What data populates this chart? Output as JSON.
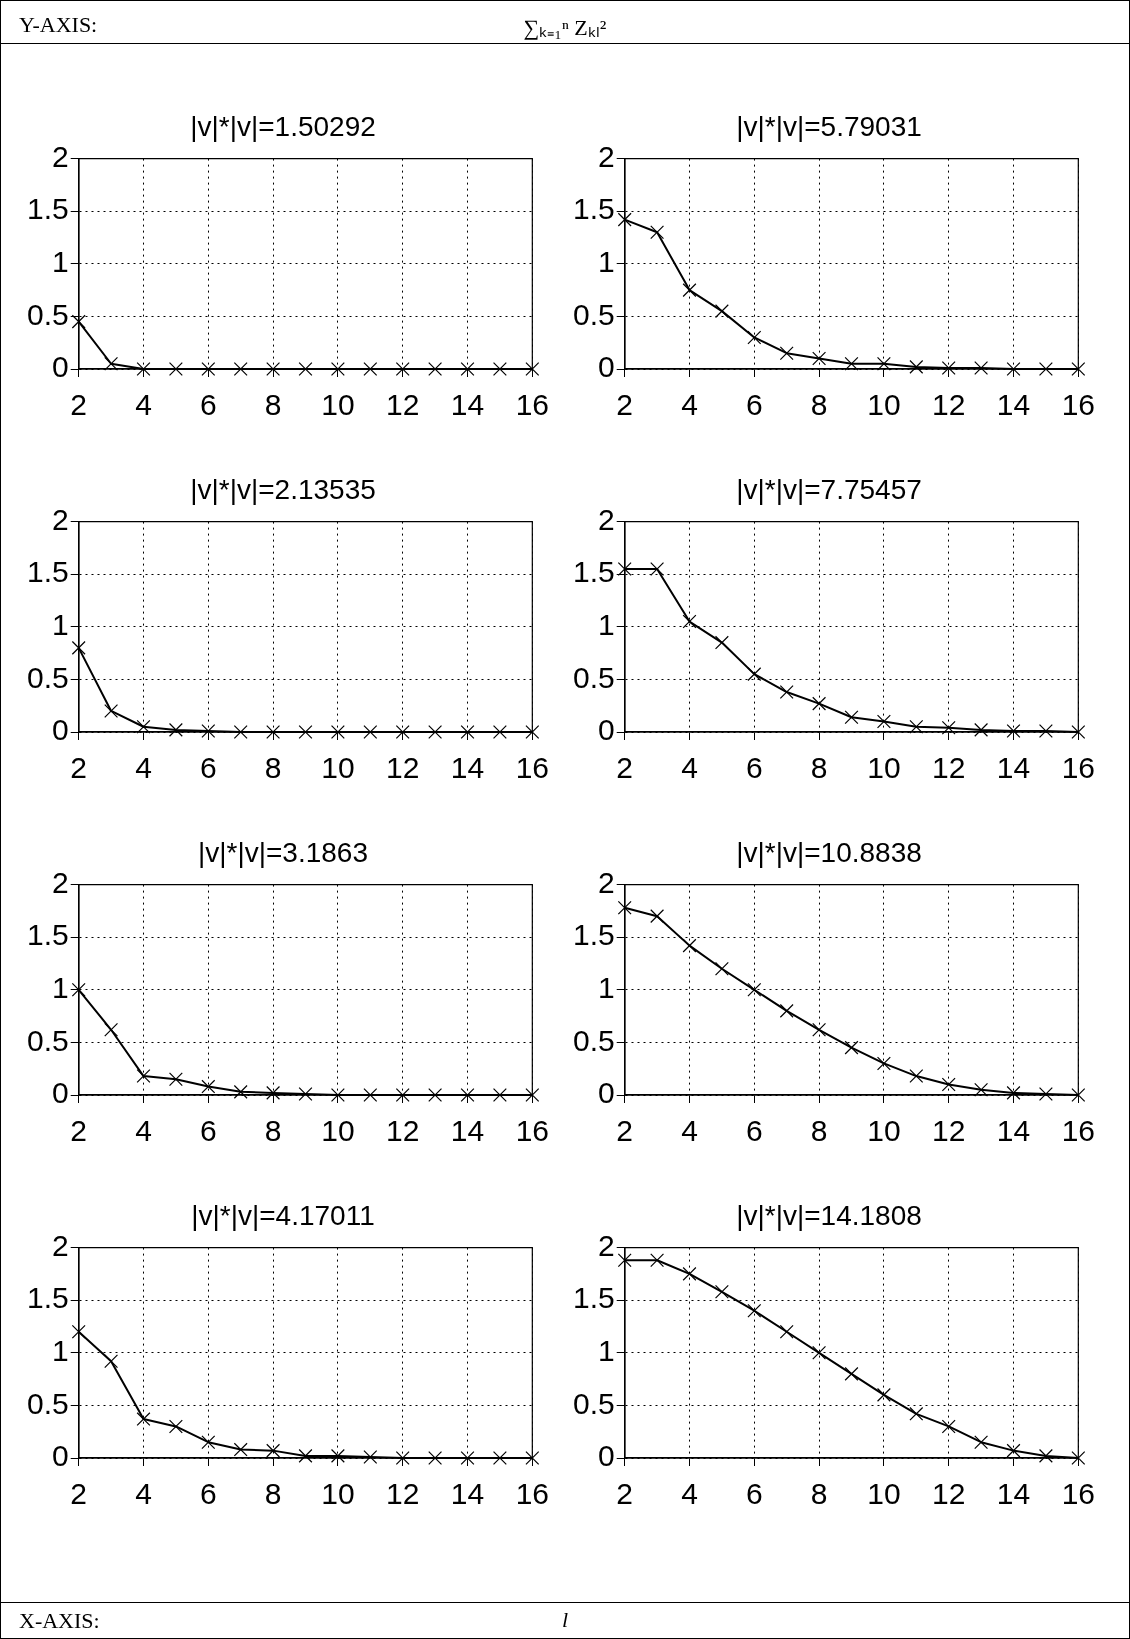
{
  "chart_data": [
    {
      "type": "line",
      "title": "|v|*|v|=1.50292",
      "annotations": [
        "Y-AXIS:",
        "∑ₖ₌₁ⁿ Zₖₗ²",
        "X-AXIS:",
        "l"
      ],
      "x": [
        2,
        3,
        4,
        5,
        6,
        7,
        8,
        9,
        10,
        11,
        12,
        13,
        14,
        15,
        16
      ],
      "series": [
        {
          "color": "#000000",
          "values": [
            0.45,
            0.05,
            0,
            0,
            0,
            0,
            0,
            0,
            0,
            0,
            0,
            0,
            0,
            0,
            0
          ]
        }
      ],
      "xlim": [
        2,
        16
      ],
      "xticks": [
        2,
        4,
        6,
        8,
        10,
        12,
        14,
        16
      ],
      "ylim": [
        0,
        2
      ],
      "yticks": [
        0,
        0.5,
        1,
        1.5,
        2
      ],
      "grid": true,
      "marker": "cross",
      "legend": false
    },
    {
      "type": "line",
      "title": "|v|*|v|=5.79031",
      "x": [
        2,
        3,
        4,
        5,
        6,
        7,
        8,
        9,
        10,
        11,
        12,
        13,
        14,
        15,
        16
      ],
      "series": [
        {
          "color": "#000000",
          "values": [
            1.42,
            1.3,
            0.75,
            0.55,
            0.3,
            0.15,
            0.1,
            0.05,
            0.05,
            0.02,
            0.01,
            0.01,
            0,
            0,
            0
          ]
        }
      ],
      "xlim": [
        2,
        16
      ],
      "xticks": [
        2,
        4,
        6,
        8,
        10,
        12,
        14,
        16
      ],
      "ylim": [
        0,
        2
      ],
      "yticks": [
        0,
        0.5,
        1,
        1.5,
        2
      ],
      "grid": true,
      "marker": "cross",
      "legend": false
    },
    {
      "type": "line",
      "title": "|v|*|v|=2.13535",
      "x": [
        2,
        3,
        4,
        5,
        6,
        7,
        8,
        9,
        10,
        11,
        12,
        13,
        14,
        15,
        16
      ],
      "series": [
        {
          "color": "#000000",
          "values": [
            0.8,
            0.2,
            0.05,
            0.02,
            0.01,
            0,
            0,
            0,
            0,
            0,
            0,
            0,
            0,
            0,
            0
          ]
        }
      ],
      "xlim": [
        2,
        16
      ],
      "xticks": [
        2,
        4,
        6,
        8,
        10,
        12,
        14,
        16
      ],
      "ylim": [
        0,
        2
      ],
      "yticks": [
        0,
        0.5,
        1,
        1.5,
        2
      ],
      "grid": true,
      "marker": "cross",
      "legend": false
    },
    {
      "type": "line",
      "title": "|v|*|v|=7.75457",
      "x": [
        2,
        3,
        4,
        5,
        6,
        7,
        8,
        9,
        10,
        11,
        12,
        13,
        14,
        15,
        16
      ],
      "series": [
        {
          "color": "#000000",
          "values": [
            1.55,
            1.55,
            1.05,
            0.85,
            0.55,
            0.38,
            0.27,
            0.14,
            0.1,
            0.05,
            0.04,
            0.02,
            0.01,
            0.01,
            0
          ]
        }
      ],
      "xlim": [
        2,
        16
      ],
      "xticks": [
        2,
        4,
        6,
        8,
        10,
        12,
        14,
        16
      ],
      "ylim": [
        0,
        2
      ],
      "yticks": [
        0,
        0.5,
        1,
        1.5,
        2
      ],
      "grid": true,
      "marker": "cross",
      "legend": false
    },
    {
      "type": "line",
      "title": "|v|*|v|=3.1863",
      "x": [
        2,
        3,
        4,
        5,
        6,
        7,
        8,
        9,
        10,
        11,
        12,
        13,
        14,
        15,
        16
      ],
      "series": [
        {
          "color": "#000000",
          "values": [
            1.0,
            0.62,
            0.18,
            0.15,
            0.08,
            0.03,
            0.02,
            0.01,
            0,
            0,
            0,
            0,
            0,
            0,
            0
          ]
        }
      ],
      "xlim": [
        2,
        16
      ],
      "xticks": [
        2,
        4,
        6,
        8,
        10,
        12,
        14,
        16
      ],
      "ylim": [
        0,
        2
      ],
      "yticks": [
        0,
        0.5,
        1,
        1.5,
        2
      ],
      "grid": true,
      "marker": "cross",
      "legend": false
    },
    {
      "type": "line",
      "title": "|v|*|v|=10.8838",
      "x": [
        2,
        3,
        4,
        5,
        6,
        7,
        8,
        9,
        10,
        11,
        12,
        13,
        14,
        15,
        16
      ],
      "series": [
        {
          "color": "#000000",
          "values": [
            1.78,
            1.7,
            1.42,
            1.2,
            1.0,
            0.8,
            0.62,
            0.45,
            0.3,
            0.18,
            0.1,
            0.05,
            0.02,
            0.01,
            0
          ]
        }
      ],
      "xlim": [
        2,
        16
      ],
      "xticks": [
        2,
        4,
        6,
        8,
        10,
        12,
        14,
        16
      ],
      "ylim": [
        0,
        2
      ],
      "yticks": [
        0,
        0.5,
        1,
        1.5,
        2
      ],
      "grid": true,
      "marker": "cross",
      "legend": false
    },
    {
      "type": "line",
      "title": "|v|*|v|=4.17011",
      "x": [
        2,
        3,
        4,
        5,
        6,
        7,
        8,
        9,
        10,
        11,
        12,
        13,
        14,
        15,
        16
      ],
      "series": [
        {
          "color": "#000000",
          "values": [
            1.2,
            0.92,
            0.37,
            0.3,
            0.15,
            0.08,
            0.07,
            0.02,
            0.02,
            0.01,
            0,
            0,
            0,
            0,
            0
          ]
        }
      ],
      "xlim": [
        2,
        16
      ],
      "xticks": [
        2,
        4,
        6,
        8,
        10,
        12,
        14,
        16
      ],
      "ylim": [
        0,
        2
      ],
      "yticks": [
        0,
        0.5,
        1,
        1.5,
        2
      ],
      "grid": true,
      "marker": "cross",
      "legend": false
    },
    {
      "type": "line",
      "title": "|v|*|v|=14.1808",
      "x": [
        2,
        3,
        4,
        5,
        6,
        7,
        8,
        9,
        10,
        11,
        12,
        13,
        14,
        15,
        16
      ],
      "series": [
        {
          "color": "#000000",
          "values": [
            1.88,
            1.88,
            1.75,
            1.58,
            1.4,
            1.2,
            1.0,
            0.8,
            0.6,
            0.42,
            0.3,
            0.15,
            0.07,
            0.02,
            0
          ]
        }
      ],
      "xlim": [
        2,
        16
      ],
      "xticks": [
        2,
        4,
        6,
        8,
        10,
        12,
        14,
        16
      ],
      "ylim": [
        0,
        2
      ],
      "yticks": [
        0,
        0.5,
        1,
        1.5,
        2
      ],
      "grid": true,
      "marker": "cross",
      "legend": false
    }
  ]
}
